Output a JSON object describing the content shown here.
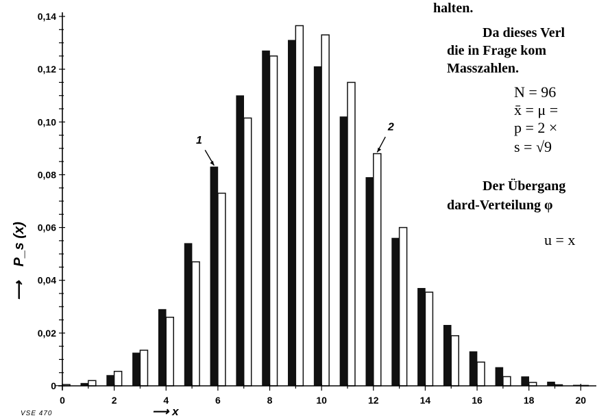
{
  "chart_data": {
    "type": "bar",
    "x": [
      0,
      1,
      2,
      3,
      4,
      5,
      6,
      7,
      8,
      9,
      10,
      11,
      12,
      13,
      14,
      15,
      16,
      17,
      18,
      19,
      20
    ],
    "series": [
      {
        "values": [
          0.0,
          0.001,
          0.004,
          0.0125,
          0.029,
          0.054,
          0.083,
          0.11,
          0.127,
          0.131,
          0.121,
          0.102,
          0.079,
          0.056,
          0.037,
          0.023,
          0.013,
          0.007,
          0.0035,
          0.0015,
          0.0003
        ],
        "color": "#111111",
        "fill": "solid"
      },
      {
        "values": [
          0.0005,
          0.002,
          0.0055,
          0.0135,
          0.026,
          0.047,
          0.073,
          0.1015,
          0.125,
          0.1365,
          0.133,
          0.115,
          0.088,
          0.06,
          0.0355,
          0.019,
          0.009,
          0.0035,
          0.0013,
          0.0004,
          0.0001
        ],
        "color": "#ffffff",
        "fill": "outline"
      }
    ],
    "ylabel": "P_s (x)",
    "ylabel_arrow": "⟶",
    "xlabel": "⟶ x",
    "xticks": [
      "0",
      "2",
      "4",
      "6",
      "8",
      "10",
      "12",
      "14",
      "16",
      "18",
      "20"
    ],
    "yticks": [
      "0",
      "0,02",
      "0,04",
      "0,06",
      "0,08",
      "0,10",
      "0,12",
      "0,14"
    ],
    "ylim": [
      0,
      0.14
    ],
    "xlim": [
      0,
      20.6
    ],
    "grid": false,
    "annotations": [
      {
        "text": "1",
        "x": 6,
        "y": 0.083
      },
      {
        "text": "2",
        "x": 12,
        "y": 0.088
      }
    ],
    "figure_code": "VSE 470"
  },
  "document_text": {
    "line1": "halten.",
    "line2": "Da dieses Verl",
    "line3": "die in Frage kom",
    "line4": "Masszahlen.",
    "eq1": "N = 96",
    "eq2": "x̄ = μ =",
    "eq3": "p = 2 ×",
    "eq4": "s = √9",
    "line5": "Der Übergang",
    "line6": "dard-Verteilung φ",
    "eq5": "u = x"
  }
}
